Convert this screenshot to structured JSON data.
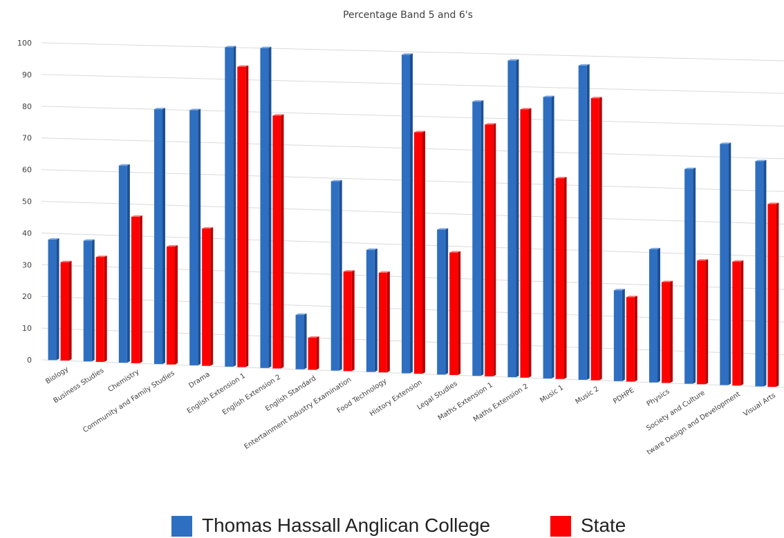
{
  "chart_data": {
    "type": "bar",
    "title": "Percentage Band 5 and 6's",
    "xlabel": "",
    "ylabel": "",
    "ylim": [
      0,
      100
    ],
    "yticks": [
      0,
      10,
      20,
      30,
      40,
      50,
      60,
      70,
      80,
      90,
      100
    ],
    "grid": true,
    "legend_position": "bottom",
    "categories": [
      "Biology",
      "Business Studies",
      "Chemistry",
      "Community and Family Studies",
      "Drama",
      "English Extension 1",
      "English Extension 2",
      "English Standard",
      "Entertainment Industry Examination",
      "Food Technology",
      "History Extension",
      "Legal Studies",
      "Maths Extension 1",
      "Maths Extension 2",
      "Music 1",
      "Music 2",
      "PDHPE",
      "Physics",
      "Society and Culture",
      "Software Design and Development",
      "Visual Arts"
    ],
    "visible_tick_labels": [
      "Biology",
      "Business Studies",
      "Chemistry",
      "Community and Family Studies",
      "Drama",
      "English Extension 1",
      "English Extension 2",
      "English Standard",
      "Entertainment Industry Examination",
      "Food Technology",
      "History Extension",
      "Legal Studies",
      "Maths Extension 1",
      "Maths Extension 2",
      "Music 1",
      "Music 2",
      "PDHPE",
      "Physics",
      "Society and Culture",
      "tware Design and Development",
      "Visual Arts"
    ],
    "series": [
      {
        "name": "Thomas Hassall Anglican College",
        "color": "#2e6fc1",
        "values": [
          38,
          38,
          62,
          80,
          80,
          100,
          100,
          17,
          59,
          38,
          99,
          45,
          85,
          98,
          87,
          97,
          28,
          41,
          66,
          74,
          69
        ]
      },
      {
        "name": "State",
        "color": "#ff0000",
        "values": [
          31,
          33,
          46,
          37,
          43,
          94,
          79,
          10,
          31,
          31,
          75,
          38,
          78,
          83,
          62,
          87,
          26,
          31,
          38,
          38,
          56
        ]
      }
    ]
  }
}
